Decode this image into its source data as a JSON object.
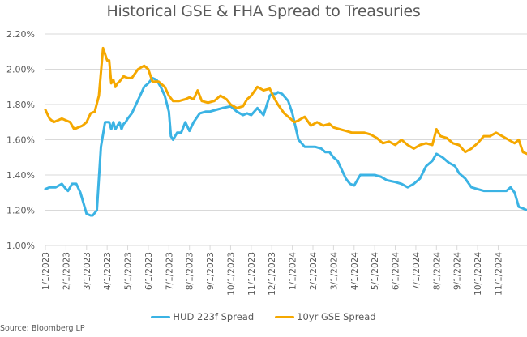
{
  "chart_data": {
    "type": "line",
    "title": "Historical GSE & FHA Spread to Treasuries",
    "xlabel": "",
    "ylabel": "",
    "ylim": [
      1.0,
      2.2
    ],
    "yticks": [
      "2.20%",
      "2.00%",
      "1.80%",
      "1.60%",
      "1.40%",
      "1.20%",
      "1.00%"
    ],
    "ytick_values": [
      2.2,
      2.0,
      1.8,
      1.6,
      1.4,
      1.2,
      1.0
    ],
    "xticks": [
      "1/1/2023",
      "2/1/2023",
      "3/1/2023",
      "4/1/2023",
      "5/1/2023",
      "6/1/2023",
      "7/1/2023",
      "8/1/2023",
      "9/1/2023",
      "10/1/2023",
      "11/1/2023",
      "12/1/2023",
      "1/1/2024",
      "2/1/2024",
      "3/1/2024",
      "4/1/2024",
      "5/1/2024",
      "6/1/2024",
      "7/1/2024",
      "8/1/2024",
      "9/1/2024",
      "10/1/2024",
      "11/1/2024"
    ],
    "x_unit": "months since 1/1/2023",
    "x_range": [
      0,
      23.4
    ],
    "grid": true,
    "legend_position": "bottom",
    "series": [
      {
        "name": "HUD 223f Spread",
        "color": "#3BB3E4",
        "x": [
          0,
          0.2,
          0.5,
          0.8,
          1.0,
          1.1,
          1.3,
          1.5,
          1.7,
          2.0,
          2.2,
          2.3,
          2.5,
          2.7,
          2.9,
          3.1,
          3.2,
          3.3,
          3.4,
          3.6,
          3.7,
          3.8,
          3.9,
          4.0,
          4.2,
          4.4,
          4.6,
          4.8,
          5.0,
          5.2,
          5.4,
          5.6,
          5.8,
          6.0,
          6.1,
          6.2,
          6.4,
          6.6,
          6.8,
          7.0,
          7.2,
          7.5,
          7.8,
          8.0,
          8.3,
          8.6,
          9.0,
          9.3,
          9.6,
          9.8,
          10.0,
          10.3,
          10.6,
          10.9,
          11.0,
          11.1,
          11.2,
          11.3,
          11.5,
          11.8,
          12.0,
          12.3,
          12.6,
          12.9,
          13.1,
          13.4,
          13.6,
          13.8,
          14.0,
          14.2,
          14.4,
          14.6,
          14.8,
          15.0,
          15.3,
          15.6,
          16.0,
          16.3,
          16.6,
          17.0,
          17.3,
          17.6,
          17.9,
          18.2,
          18.5,
          18.8,
          19.0,
          19.3,
          19.6,
          19.9,
          20.1,
          20.4,
          20.7,
          21.0,
          21.3,
          21.6,
          21.9,
          22.2,
          22.4,
          22.6,
          22.8,
          23.0,
          23.2,
          23.4
        ],
        "y": [
          1.32,
          1.33,
          1.33,
          1.35,
          1.32,
          1.31,
          1.35,
          1.35,
          1.3,
          1.18,
          1.17,
          1.17,
          1.2,
          1.56,
          1.7,
          1.7,
          1.66,
          1.7,
          1.66,
          1.7,
          1.66,
          1.69,
          1.7,
          1.72,
          1.75,
          1.8,
          1.85,
          1.9,
          1.92,
          1.95,
          1.94,
          1.9,
          1.85,
          1.76,
          1.62,
          1.6,
          1.64,
          1.64,
          1.7,
          1.65,
          1.7,
          1.75,
          1.76,
          1.76,
          1.77,
          1.78,
          1.79,
          1.76,
          1.74,
          1.75,
          1.74,
          1.78,
          1.74,
          1.85,
          1.86,
          1.86,
          1.86,
          1.87,
          1.86,
          1.82,
          1.75,
          1.6,
          1.56,
          1.56,
          1.56,
          1.55,
          1.53,
          1.53,
          1.5,
          1.48,
          1.43,
          1.38,
          1.35,
          1.34,
          1.4,
          1.4,
          1.4,
          1.39,
          1.37,
          1.36,
          1.35,
          1.33,
          1.35,
          1.38,
          1.45,
          1.48,
          1.52,
          1.5,
          1.47,
          1.45,
          1.41,
          1.38,
          1.33,
          1.32,
          1.31,
          1.31,
          1.31,
          1.31,
          1.31,
          1.33,
          1.3,
          1.22,
          1.21,
          1.2
        ]
      },
      {
        "name": "10yr GSE Spread",
        "color": "#F5A800",
        "x": [
          0,
          0.2,
          0.4,
          0.6,
          0.8,
          1.0,
          1.2,
          1.4,
          1.6,
          1.8,
          2.0,
          2.2,
          2.4,
          2.6,
          2.8,
          3.0,
          3.1,
          3.2,
          3.3,
          3.4,
          3.5,
          3.6,
          3.8,
          4.0,
          4.2,
          4.5,
          4.8,
          5.0,
          5.2,
          5.5,
          5.8,
          6.0,
          6.2,
          6.5,
          6.8,
          7.0,
          7.2,
          7.4,
          7.6,
          7.9,
          8.2,
          8.5,
          8.8,
          9.0,
          9.3,
          9.6,
          9.8,
          10.0,
          10.3,
          10.6,
          10.9,
          11.1,
          11.3,
          11.6,
          11.9,
          12.1,
          12.3,
          12.6,
          12.9,
          13.2,
          13.5,
          13.8,
          14.0,
          14.3,
          14.6,
          14.9,
          15.2,
          15.5,
          15.8,
          16.1,
          16.4,
          16.7,
          17.0,
          17.3,
          17.6,
          17.9,
          18.2,
          18.5,
          18.8,
          19.0,
          19.2,
          19.5,
          19.8,
          20.1,
          20.4,
          20.7,
          21.0,
          21.3,
          21.6,
          21.9,
          22.2,
          22.5,
          22.8,
          23.0,
          23.2,
          23.4
        ],
        "y": [
          1.77,
          1.72,
          1.7,
          1.71,
          1.72,
          1.71,
          1.7,
          1.66,
          1.67,
          1.68,
          1.7,
          1.75,
          1.76,
          1.85,
          2.12,
          2.05,
          2.05,
          1.92,
          1.94,
          1.9,
          1.92,
          1.93,
          1.96,
          1.95,
          1.95,
          2.0,
          2.02,
          2.0,
          1.93,
          1.93,
          1.9,
          1.85,
          1.82,
          1.82,
          1.83,
          1.84,
          1.83,
          1.88,
          1.82,
          1.81,
          1.82,
          1.85,
          1.83,
          1.8,
          1.78,
          1.79,
          1.83,
          1.85,
          1.9,
          1.88,
          1.89,
          1.84,
          1.8,
          1.75,
          1.72,
          1.7,
          1.71,
          1.73,
          1.68,
          1.7,
          1.68,
          1.69,
          1.67,
          1.66,
          1.65,
          1.64,
          1.64,
          1.64,
          1.63,
          1.61,
          1.58,
          1.59,
          1.57,
          1.6,
          1.57,
          1.55,
          1.57,
          1.58,
          1.57,
          1.66,
          1.62,
          1.61,
          1.58,
          1.57,
          1.53,
          1.55,
          1.58,
          1.62,
          1.62,
          1.64,
          1.62,
          1.6,
          1.58,
          1.6,
          1.53,
          1.52
        ]
      }
    ]
  },
  "source": "Source: Bloomberg LP"
}
